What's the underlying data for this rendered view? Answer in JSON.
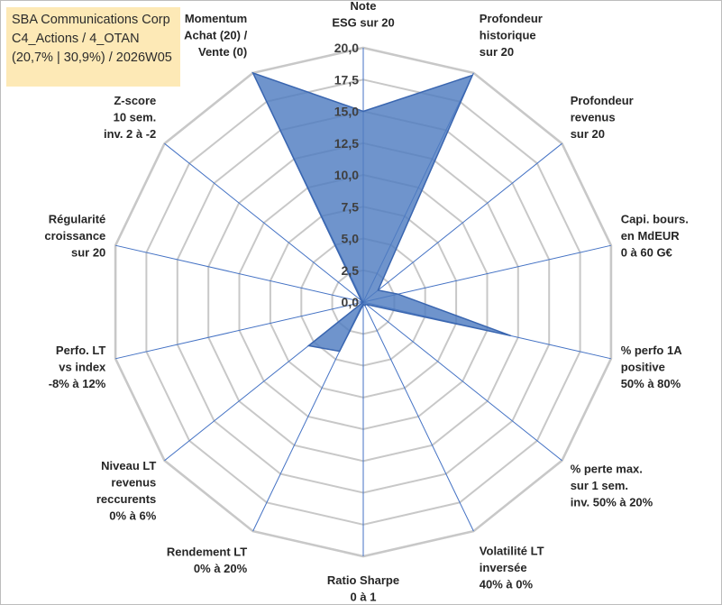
{
  "header": {
    "line1": "SBA Communications Corp",
    "line2": "C4_Actions / 4_OTAN",
    "line3": "(20,7% | 30,9%) / 2026W05"
  },
  "colors": {
    "fill": "#4f7cc1",
    "line": "#3a66b0",
    "grid": "#c8c8c8",
    "spoke": "#4472c4",
    "title_bg": "#fde9b6"
  },
  "chart_data": {
    "type": "radar",
    "rmax": 20,
    "ticks": [
      "0,0",
      "2,5",
      "5,0",
      "7,5",
      "10,0",
      "12,5",
      "15,0",
      "17,5",
      "20,0"
    ],
    "tick_values": [
      0,
      2.5,
      5,
      7.5,
      10,
      12.5,
      15,
      17.5,
      20
    ],
    "axes": [
      {
        "lines": [
          "Note",
          "ESG sur 20"
        ],
        "value": 15.0
      },
      {
        "lines": [
          "Profondeur",
          "historique",
          "sur 20"
        ],
        "value": 19.8
      },
      {
        "lines": [
          "Profondeur",
          "revenus",
          "sur 20"
        ],
        "value": 1.5
      },
      {
        "lines": [
          "Capi. bours.",
          "en MdEUR",
          "0 à 60 G€"
        ],
        "value": 2.8
      },
      {
        "lines": [
          "% perfo 1A",
          "positive",
          "50% à 80%"
        ],
        "value": 11.9
      },
      {
        "lines": [
          "% perte max.",
          "sur 1 sem.",
          "inv. 50% à 20%"
        ],
        "value": 0.3
      },
      {
        "lines": [
          "Volatilité LT",
          "inversée",
          "40% à 0%"
        ],
        "value": 0.3
      },
      {
        "lines": [
          "Ratio Sharpe",
          "0 à 1"
        ],
        "value": 0.2
      },
      {
        "lines": [
          "Rendement LT",
          "0% à 20%"
        ],
        "value": 4.3
      },
      {
        "lines": [
          "Niveau LT",
          "revenus",
          "reccurents",
          "0% à 6%"
        ],
        "value": 5.5
      },
      {
        "lines": [
          "Perfo. LT",
          "vs index",
          "-8% à 12%"
        ],
        "value": 0.0
      },
      {
        "lines": [
          "Régularité",
          "croissance",
          "sur 20"
        ],
        "value": 0.0
      },
      {
        "lines": [
          "Z-score",
          "10 sem.",
          "inv. 2 à -2"
        ],
        "value": 0.2
      },
      {
        "lines": [
          "Momentum",
          "Achat (20) /",
          "Vente (0)"
        ],
        "value": 20.0
      }
    ]
  }
}
